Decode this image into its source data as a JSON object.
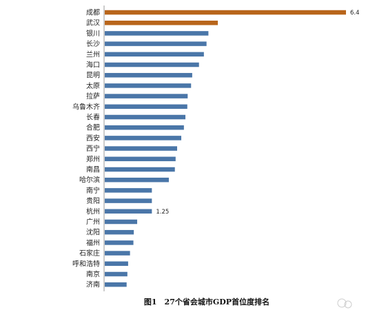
{
  "chart_data": {
    "type": "bar",
    "orientation": "horizontal",
    "categories": [
      "成都",
      "武汉",
      "银川",
      "长沙",
      "兰州",
      "海口",
      "昆明",
      "太原",
      "拉萨",
      "乌鲁木齐",
      "长春",
      "合肥",
      "西安",
      "西宁",
      "郑州",
      "南昌",
      "哈尔滨",
      "南宁",
      "贵阳",
      "杭州",
      "广州",
      "沈阳",
      "福州",
      "石家庄",
      "呼和浩特",
      "南京",
      "济南"
    ],
    "values": [
      6.4,
      3.0,
      2.75,
      2.7,
      2.63,
      2.5,
      2.32,
      2.29,
      2.2,
      2.19,
      2.14,
      2.1,
      2.03,
      1.92,
      1.88,
      1.86,
      1.7,
      1.25,
      1.25,
      1.25,
      0.86,
      0.77,
      0.76,
      0.67,
      0.62,
      0.6,
      0.58
    ],
    "highlight_count": 2,
    "data_labels": [
      {
        "index": 0,
        "text": "6.4"
      },
      {
        "index": 19,
        "text": "1.25"
      }
    ],
    "xlim": [
      0,
      6.4
    ],
    "grid": false,
    "legend": "none",
    "colors": {
      "highlight": "#B8651B",
      "default": "#4A76A8"
    }
  },
  "caption": "图1　27个省会城市GDP首位度排名",
  "watermark": "(logo)"
}
